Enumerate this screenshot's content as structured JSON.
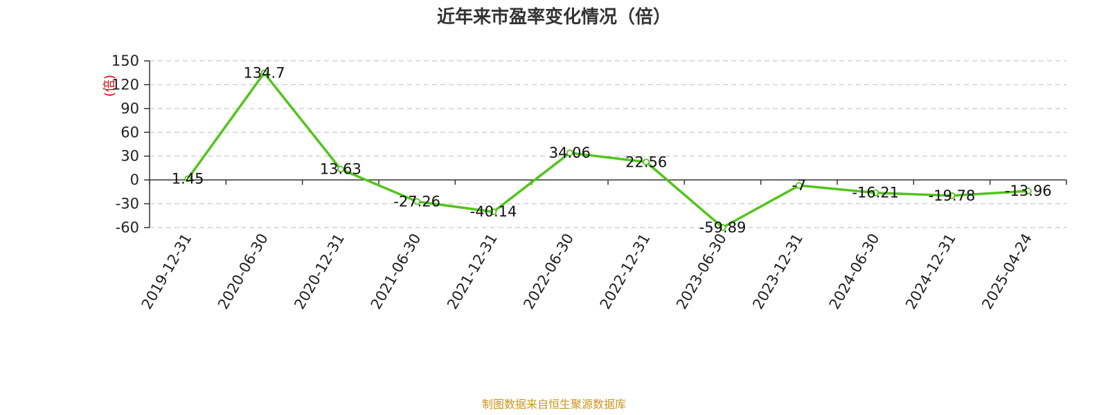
{
  "chart_data": {
    "type": "line",
    "title": "近年来市盈率变化情况（倍）",
    "ylabel": "(倍)",
    "xlabel": "",
    "categories": [
      "2019-12-31",
      "2020-06-30",
      "2020-12-31",
      "2021-06-30",
      "2021-12-31",
      "2022-06-30",
      "2022-12-31",
      "2023-06-30",
      "2023-12-31",
      "2024-06-30",
      "2024-12-31",
      "2025-04-24"
    ],
    "values": [
      1.45,
      134.7,
      13.63,
      -27.26,
      -40.14,
      34.06,
      22.56,
      -59.89,
      -7,
      -16.21,
      -19.78,
      -13.96
    ],
    "data_labels": [
      "1.45",
      "134.7",
      "13.63",
      "-27.26",
      "-40.14",
      "34.06",
      "22.56",
      "-59.89",
      "-7",
      "-16.21",
      "-19.78",
      "-13.96"
    ],
    "ylim": [
      -60,
      150
    ],
    "yticks": [
      150,
      120,
      90,
      60,
      30,
      0,
      -30,
      -60
    ],
    "grid": true,
    "line_color": "#52c41a",
    "ylabel_color": "#e8000b"
  },
  "footer": {
    "source": "制图数据来自恒生聚源数据库",
    "color": "#c8961e"
  }
}
